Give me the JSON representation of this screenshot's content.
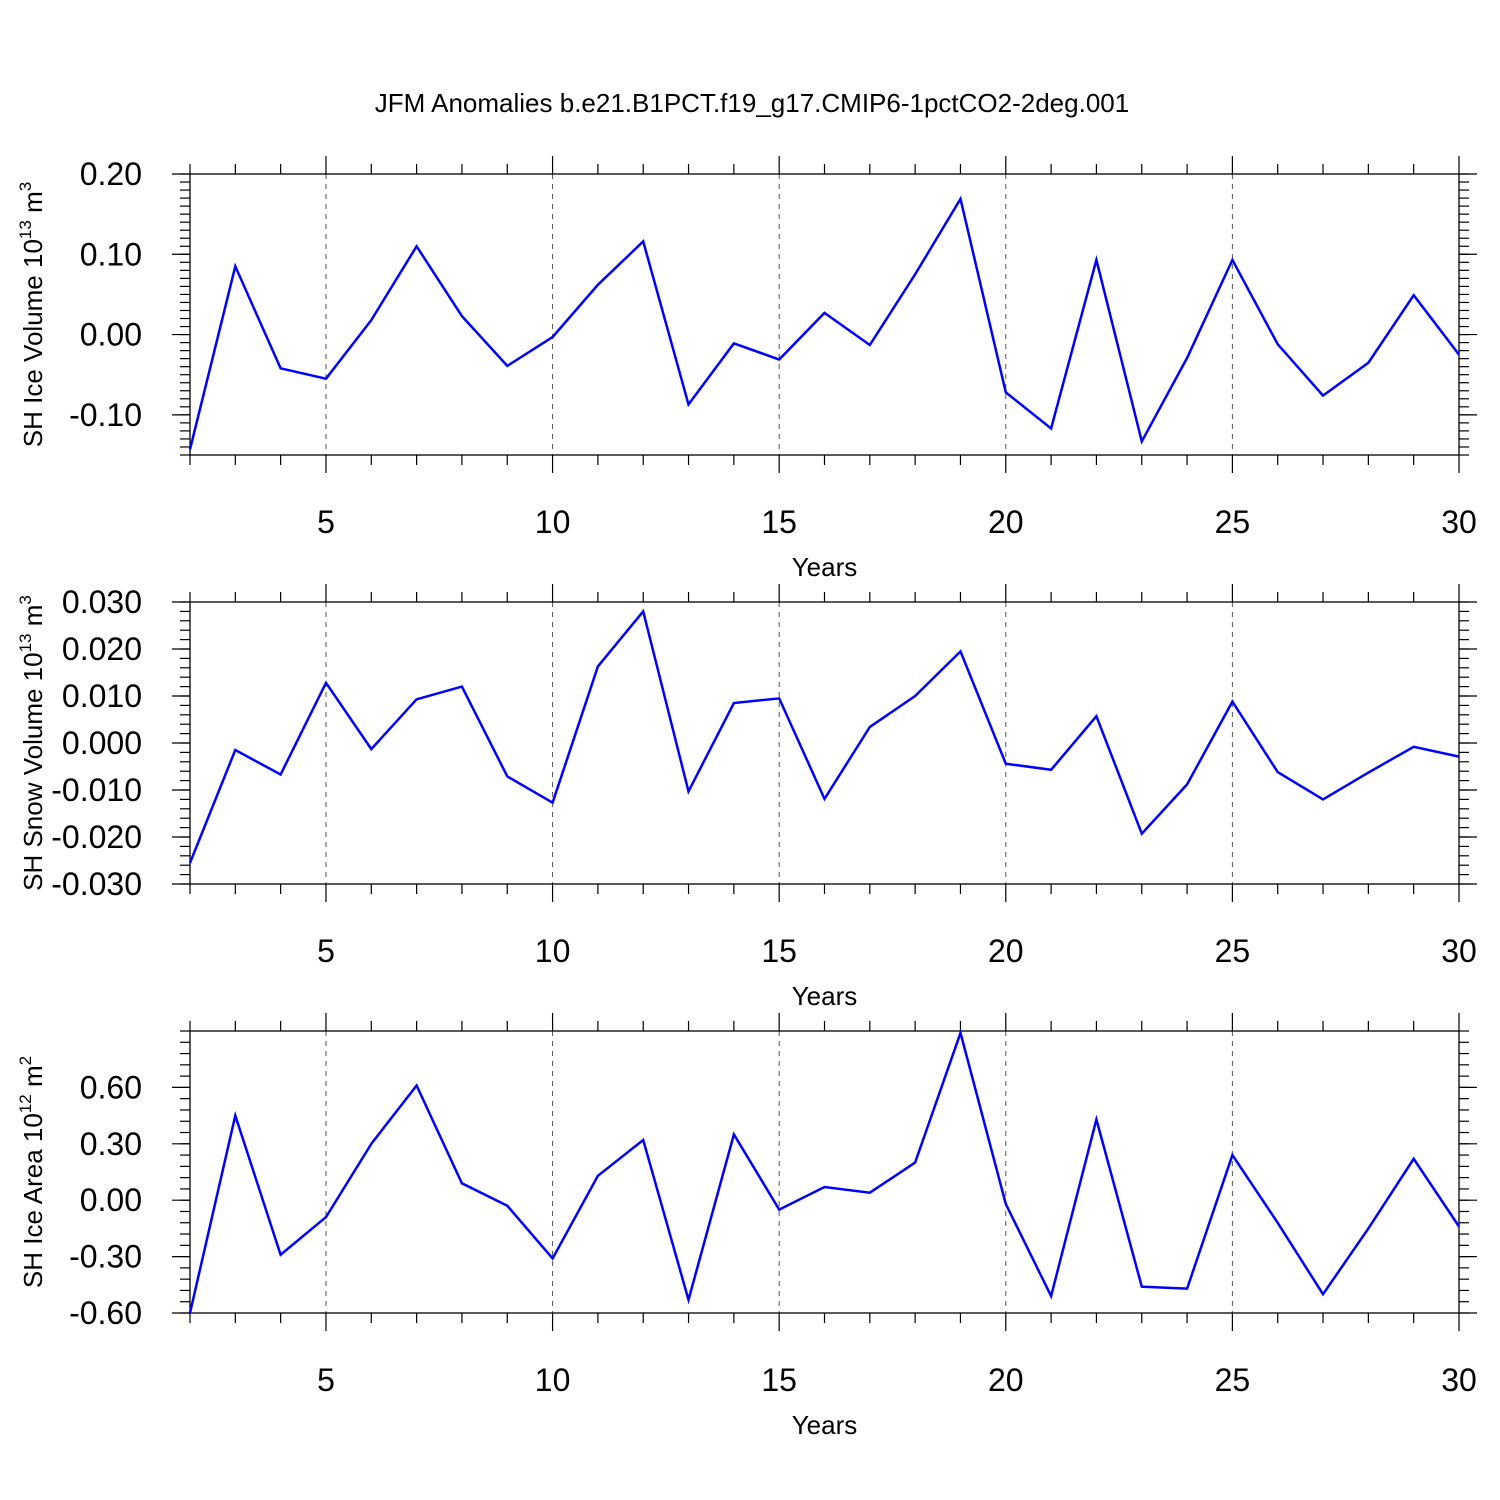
{
  "title": "JFM Anomalies b.e21.B1PCT.f19_g17.CMIP6-1pctCO2-2deg.001",
  "line_color": "#0000ff",
  "chart_data": [
    {
      "type": "line",
      "ylabel": "SH Ice Volume 10",
      "ylabel_sup": "13",
      "ylabel_unit": "m",
      "ylabel_unit_sup": "3",
      "xlabel": "Years",
      "xlim": [
        2,
        30
      ],
      "ylim": [
        -0.15,
        0.2
      ],
      "xticks": [
        5,
        10,
        15,
        20,
        25,
        30
      ],
      "yticks": [
        -0.1,
        0.0,
        0.1,
        0.2
      ],
      "ytick_labels": [
        "-0.10",
        "0.00",
        "0.10",
        "0.20"
      ],
      "x": [
        2,
        3,
        4,
        5,
        6,
        7,
        8,
        9,
        10,
        11,
        12,
        13,
        14,
        15,
        16,
        17,
        18,
        19,
        20,
        21,
        22,
        23,
        24,
        25,
        26,
        27,
        28,
        29,
        30
      ],
      "values": [
        -0.143,
        0.085,
        -0.042,
        -0.055,
        0.018,
        0.11,
        0.023,
        -0.039,
        -0.003,
        0.062,
        0.116,
        -0.087,
        -0.011,
        -0.031,
        0.027,
        -0.013,
        0.075,
        0.169,
        -0.072,
        -0.117,
        0.093,
        -0.133,
        -0.029,
        0.093,
        -0.012,
        -0.076,
        -0.035,
        0.049,
        -0.025
      ]
    },
    {
      "type": "line",
      "ylabel": "SH Snow Volume 10",
      "ylabel_sup": "13",
      "ylabel_unit": "m",
      "ylabel_unit_sup": "3",
      "xlabel": "Years",
      "xlim": [
        2,
        30
      ],
      "ylim": [
        -0.03,
        0.03
      ],
      "xticks": [
        5,
        10,
        15,
        20,
        25,
        30
      ],
      "yticks": [
        -0.03,
        -0.02,
        -0.01,
        0.0,
        0.01,
        0.02,
        0.03
      ],
      "ytick_labels": [
        "-0.030",
        "-0.020",
        "-0.010",
        "0.000",
        "0.010",
        "0.020",
        "0.030"
      ],
      "x": [
        2,
        3,
        4,
        5,
        6,
        7,
        8,
        9,
        10,
        11,
        12,
        13,
        14,
        15,
        16,
        17,
        18,
        19,
        20,
        21,
        22,
        23,
        24,
        25,
        26,
        27,
        28,
        29,
        30
      ],
      "values": [
        -0.0255,
        -0.0015,
        -0.0067,
        0.0128,
        -0.0013,
        0.0093,
        0.012,
        -0.0071,
        -0.0127,
        0.0163,
        0.028,
        -0.0103,
        0.0085,
        0.0095,
        -0.0119,
        0.0034,
        0.01,
        0.0195,
        -0.0044,
        -0.0057,
        0.0057,
        -0.0193,
        -0.0088,
        0.0088,
        -0.0062,
        -0.012,
        -0.0063,
        -0.0008,
        -0.0029
      ]
    },
    {
      "type": "line",
      "ylabel": "SH Ice Area 10",
      "ylabel_sup": "12",
      "ylabel_unit": "m",
      "ylabel_unit_sup": "2",
      "xlabel": "Years",
      "xlim": [
        2,
        30
      ],
      "ylim": [
        -0.6,
        0.9
      ],
      "xticks": [
        5,
        10,
        15,
        20,
        25,
        30
      ],
      "yticks": [
        -0.6,
        -0.3,
        0.0,
        0.3,
        0.6
      ],
      "ytick_labels": [
        "-0.60",
        "-0.30",
        "0.00",
        "0.30",
        "0.60"
      ],
      "x": [
        2,
        3,
        4,
        5,
        6,
        7,
        8,
        9,
        10,
        11,
        12,
        13,
        14,
        15,
        16,
        17,
        18,
        19,
        20,
        21,
        22,
        23,
        24,
        25,
        26,
        27,
        28,
        29,
        30
      ],
      "values": [
        -0.6,
        0.45,
        -0.29,
        -0.09,
        0.3,
        0.61,
        0.09,
        -0.03,
        -0.31,
        0.13,
        0.32,
        -0.53,
        0.35,
        -0.05,
        0.07,
        0.04,
        0.2,
        0.89,
        -0.02,
        -0.51,
        0.43,
        -0.46,
        -0.47,
        0.24,
        -0.12,
        -0.5,
        -0.15,
        0.22,
        -0.14
      ]
    }
  ]
}
